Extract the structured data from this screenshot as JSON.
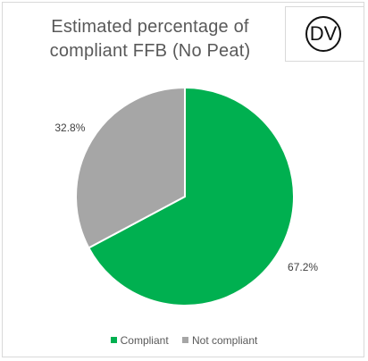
{
  "chart_data": {
    "type": "pie",
    "title": "Estimated percentage of compliant FFB (No Peat)",
    "title_lines": [
      "Estimated percentage of",
      "compliant FFB (No Peat)"
    ],
    "categories": [
      "Compliant",
      "Not compliant"
    ],
    "values": [
      67.2,
      32.8
    ],
    "data_labels": [
      "67.2%",
      "32.8%"
    ],
    "colors": [
      "#00b050",
      "#a6a6a6"
    ],
    "legend": "bottom"
  },
  "logo": {
    "text": "DV"
  }
}
